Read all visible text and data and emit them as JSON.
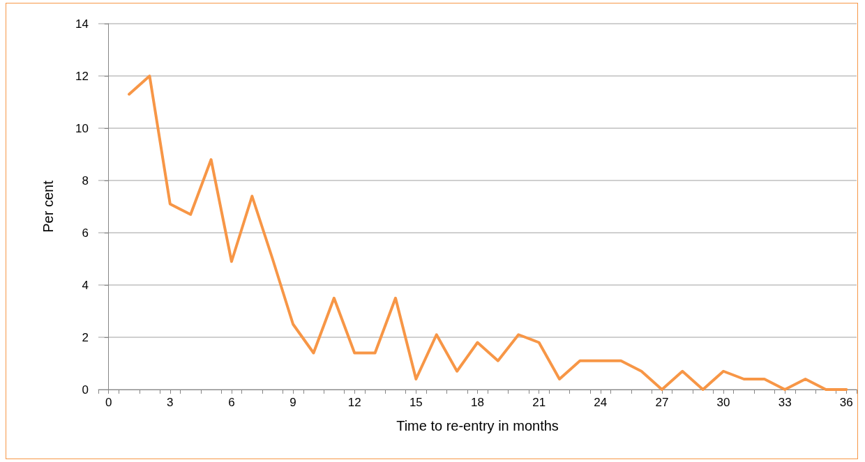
{
  "chart_data": {
    "type": "line",
    "xlabel": "Time to re-entry in months",
    "ylabel": "Per cent",
    "series": [
      {
        "color": "#f79646",
        "x": [
          1,
          2,
          3,
          4,
          5,
          6,
          7,
          8,
          9,
          10,
          11,
          12,
          13,
          14,
          15,
          16,
          17,
          18,
          19,
          20,
          21,
          22,
          23,
          24,
          25,
          26,
          27,
          28,
          29,
          30,
          31,
          32,
          33,
          34,
          35,
          36
        ],
        "values": [
          11.3,
          12,
          7.1,
          6.7,
          8.8,
          4.9,
          7.4,
          5.0,
          2.5,
          1.4,
          3.5,
          1.4,
          1.4,
          3.5,
          0.4,
          2.1,
          0.7,
          1.8,
          1.1,
          2.1,
          1.8,
          0.4,
          1.1,
          1.1,
          1.1,
          0.7,
          0,
          0.7,
          0,
          0.7,
          0.4,
          0.4,
          0,
          0.4,
          0,
          0
        ]
      }
    ],
    "xlim": [
      -0.5,
      36.5
    ],
    "xticks": [
      0,
      3,
      6,
      9,
      12,
      15,
      18,
      21,
      24,
      27,
      30,
      33,
      36,
      {
        "value": -0.5,
        "label": null
      },
      {
        "value": 0.5,
        "label": null
      },
      {
        "value": 1.5,
        "label": null
      },
      {
        "value": 2.5,
        "label": null
      },
      {
        "value": 3.5,
        "label": null
      },
      {
        "value": 4.5,
        "label": null
      },
      {
        "value": 5.5,
        "label": null
      },
      {
        "value": 6.5,
        "label": null
      },
      {
        "value": 7.5,
        "label": null
      },
      {
        "value": 8.5,
        "label": null
      },
      {
        "value": 9.5,
        "label": null
      },
      {
        "value": 10.5,
        "label": null
      },
      {
        "value": 11.5,
        "label": null
      },
      {
        "value": 12.5,
        "label": null
      },
      {
        "value": 13.5,
        "label": null
      },
      {
        "value": 14.5,
        "label": null
      },
      {
        "value": 15.5,
        "label": null
      },
      {
        "value": 16.5,
        "label": null
      },
      {
        "value": 17.5,
        "label": null
      },
      {
        "value": 18.5,
        "label": null
      },
      {
        "value": 19.5,
        "label": null
      },
      {
        "value": 20.5,
        "label": null
      },
      {
        "value": 21.5,
        "label": null
      },
      {
        "value": 22.5,
        "label": null
      },
      {
        "value": 23.5,
        "label": null
      },
      {
        "value": 24.5,
        "label": null
      },
      {
        "value": 25.5,
        "label": null
      },
      {
        "value": 26.5,
        "label": null
      },
      {
        "value": 27.5,
        "label": null
      },
      {
        "value": 28.5,
        "label": null
      },
      {
        "value": 29.5,
        "label": null
      },
      {
        "value": 30.5,
        "label": null
      },
      {
        "value": 31.5,
        "label": null
      },
      {
        "value": 32.5,
        "label": null
      },
      {
        "value": 33.5,
        "label": null
      },
      {
        "value": 34.5,
        "label": null
      },
      {
        "value": 35.5,
        "label": null
      },
      {
        "value": 36.5,
        "label": null
      }
    ],
    "ylim": [
      0,
      14
    ],
    "yticks": [
      0,
      2,
      4,
      6,
      8,
      10,
      12,
      14
    ],
    "grid": "y",
    "marker": "none",
    "line_style": "solid"
  }
}
